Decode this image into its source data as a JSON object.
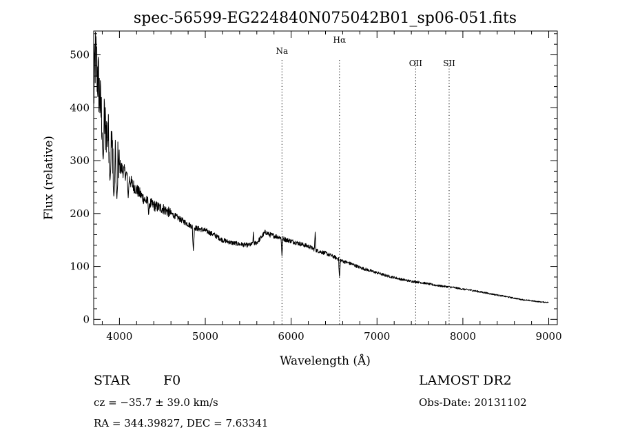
{
  "chart_data": {
    "type": "line",
    "title": "spec-56599-EG224840N075042B01_sp06-051.fits",
    "xlabel": "Wavelength (Å)",
    "ylabel": "Flux (relative)",
    "xlim": [
      3700,
      9100
    ],
    "ylim": [
      -10,
      545
    ],
    "x_ticks": [
      4000,
      5000,
      6000,
      7000,
      8000,
      9000
    ],
    "y_ticks": [
      0,
      100,
      200,
      300,
      400,
      500
    ],
    "grid": false,
    "series": [
      {
        "x": [
          3700,
          3720,
          3740,
          3760,
          3780,
          3800,
          3820,
          3840,
          3860,
          3880,
          3900,
          3920,
          3940,
          3960,
          3980,
          4000,
          4050,
          4100,
          4150,
          4200,
          4250,
          4300,
          4350,
          4400,
          4450,
          4500,
          4550,
          4600,
          4650,
          4700,
          4750,
          4800,
          4850,
          4900,
          4950,
          5000,
          5100,
          5200,
          5300,
          5400,
          5500,
          5600,
          5700,
          5750,
          5800,
          5850,
          5900,
          5950,
          6000,
          6100,
          6200,
          6300,
          6400,
          6500,
          6600,
          6700,
          6800,
          6900,
          7000,
          7100,
          7200,
          7300,
          7400,
          7500,
          7600,
          7700,
          7800,
          7900,
          8000,
          8100,
          8200,
          8300,
          8400,
          8500,
          8600,
          8700,
          8800,
          8900,
          9000
        ],
        "y": [
          420,
          500,
          470,
          440,
          400,
          370,
          380,
          360,
          350,
          340,
          330,
          320,
          310,
          300,
          295,
          290,
          280,
          270,
          255,
          245,
          235,
          225,
          220,
          215,
          212,
          210,
          205,
          200,
          195,
          190,
          185,
          180,
          175,
          172,
          170,
          168,
          160,
          150,
          145,
          142,
          140,
          145,
          165,
          160,
          158,
          156,
          153,
          150,
          148,
          143,
          138,
          130,
          125,
          118,
          110,
          105,
          98,
          93,
          88,
          83,
          79,
          75,
          72,
          70,
          67,
          64,
          62,
          60,
          57,
          55,
          52,
          49,
          46,
          43,
          40,
          37,
          35,
          33,
          32
        ],
        "dips": [
          {
            "x": 3810,
            "y": 300
          },
          {
            "x": 3890,
            "y": 260
          },
          {
            "x": 3935,
            "y": 230
          },
          {
            "x": 3970,
            "y": 228
          },
          {
            "x": 4102,
            "y": 230
          },
          {
            "x": 4340,
            "y": 195
          },
          {
            "x": 4861,
            "y": 130
          },
          {
            "x": 5175,
            "y": 145
          },
          {
            "x": 5893,
            "y": 120
          },
          {
            "x": 6563,
            "y": 78
          }
        ],
        "spikes": [
          {
            "x": 5560,
            "y": 165
          },
          {
            "x": 6280,
            "y": 165
          }
        ]
      }
    ],
    "line_markers": [
      {
        "label": "Na",
        "x": 5893
      },
      {
        "label": "Hα",
        "x": 6563
      },
      {
        "label": "OII",
        "x": 7450
      },
      {
        "label": "SII",
        "x": 7840
      }
    ]
  },
  "info": {
    "object_class": "STAR",
    "subclass": "F0",
    "velocity": "cz = −35.7 ± 39.0 km/s",
    "coordinates": "RA = 344.39827, DEC =    7.63341",
    "survey": "LAMOST DR2",
    "obs_date": "Obs-Date: 20131102"
  }
}
